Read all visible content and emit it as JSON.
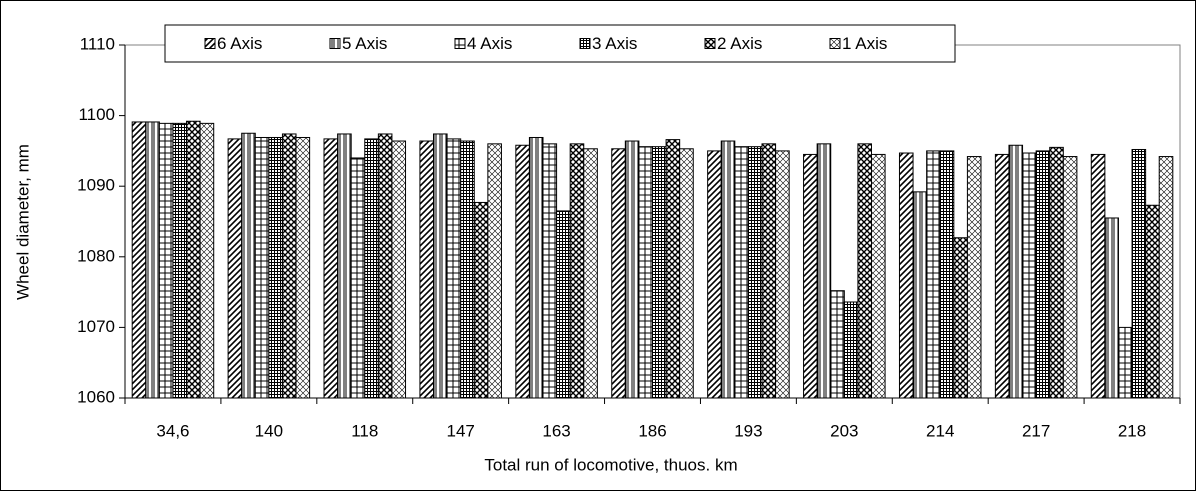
{
  "chart_data": {
    "type": "bar",
    "x_label": "Total run of locomotive, thuos. km",
    "y_label": "Wheel diameter, mm",
    "categories": [
      "34,6",
      "140",
      "118",
      "147",
      "163",
      "186",
      "193",
      "203",
      "214",
      "217",
      "218"
    ],
    "series": [
      {
        "name": "6 Axis",
        "color": "#000000",
        "values": [
          1099.1,
          1096.7,
          1096.7,
          1096.4,
          1095.8,
          1095.3,
          1095.0,
          1094.5,
          1094.7,
          1094.5,
          1094.5
        ]
      },
      {
        "name": "5 Axis",
        "color": "#000000",
        "values": [
          1099.1,
          1097.5,
          1097.4,
          1097.4,
          1096.9,
          1096.4,
          1096.4,
          1096.0,
          1089.2,
          1095.8,
          1085.5
        ]
      },
      {
        "name": "4 Axis",
        "color": "#000000",
        "values": [
          1098.9,
          1096.9,
          1094.0,
          1096.7,
          1096.0,
          1095.6,
          1095.6,
          1075.2,
          1095.0,
          1094.7,
          1070.0
        ]
      },
      {
        "name": "3 Axis",
        "color": "#000000",
        "values": [
          1098.9,
          1096.9,
          1096.7,
          1096.4,
          1086.5,
          1095.6,
          1095.6,
          1073.6,
          1095.0,
          1095.0,
          1095.2
        ]
      },
      {
        "name": "2 Axis",
        "color": "#000000",
        "values": [
          1099.2,
          1097.4,
          1097.4,
          1087.7,
          1096.0,
          1096.6,
          1096.0,
          1096.0,
          1082.7,
          1095.5,
          1087.3
        ]
      },
      {
        "name": "1 Axis",
        "color": "#000000",
        "values": [
          1098.9,
          1096.9,
          1096.4,
          1096.0,
          1095.3,
          1095.3,
          1095.0,
          1094.5,
          1094.2,
          1094.2,
          1094.2
        ]
      }
    ],
    "ylim": [
      1060,
      1110
    ],
    "yticks": [
      1060,
      1070,
      1080,
      1090,
      1100,
      1110
    ],
    "grid": false,
    "legend": "top"
  }
}
